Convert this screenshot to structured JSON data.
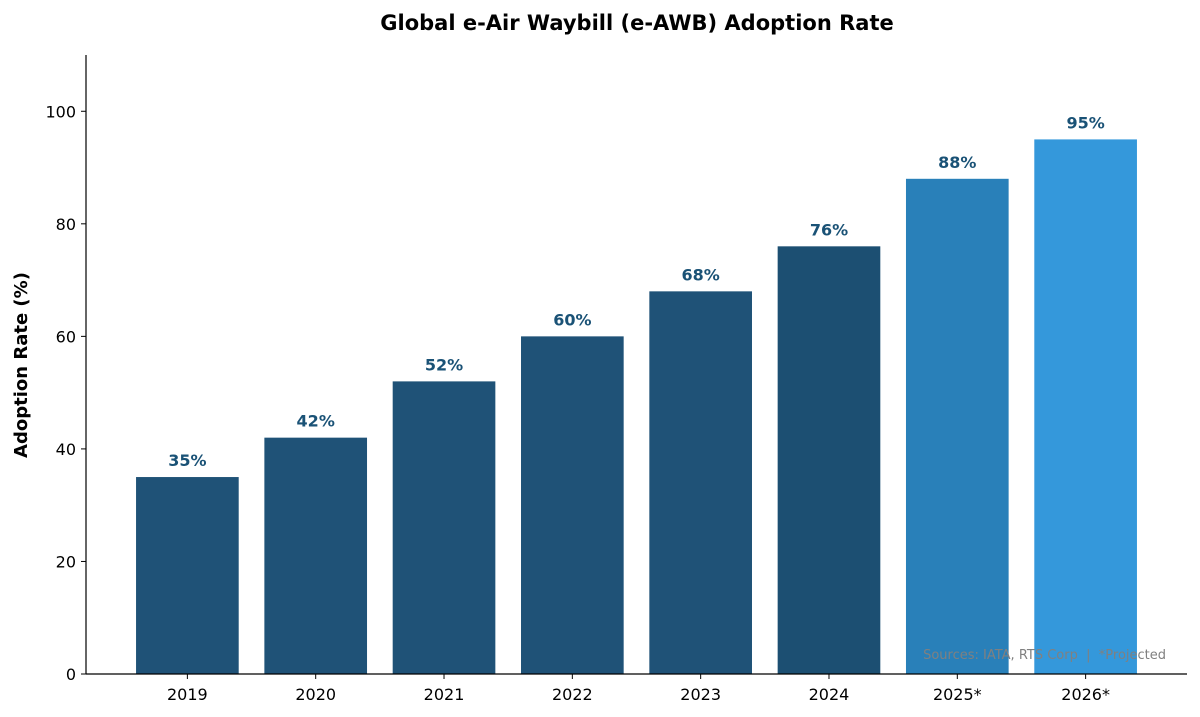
{
  "chart_data": {
    "type": "bar",
    "title": "Global e-Air Waybill (e-AWB) Adoption Rate",
    "xlabel": "",
    "ylabel": "Adoption Rate (%)",
    "categories": [
      "2019",
      "2020",
      "2021",
      "2022",
      "2023",
      "2024",
      "2025*",
      "2026*"
    ],
    "values": [
      35,
      42,
      52,
      60,
      68,
      76,
      88,
      95
    ],
    "data_labels": [
      "35%",
      "42%",
      "52%",
      "60%",
      "68%",
      "76%",
      "88%",
      "95%"
    ],
    "bar_colors": [
      "#1f5277",
      "#1f5277",
      "#1f5277",
      "#1f5277",
      "#1f5277",
      "#1c4f72",
      "#2980b9",
      "#3498db"
    ],
    "label_color": "#1a5276",
    "ylim": [
      0,
      110
    ],
    "yticks": [
      0,
      20,
      40,
      60,
      80,
      100
    ],
    "grid": false,
    "annotation": "Sources: IATA, RTS Corp  |  *Projected"
  }
}
